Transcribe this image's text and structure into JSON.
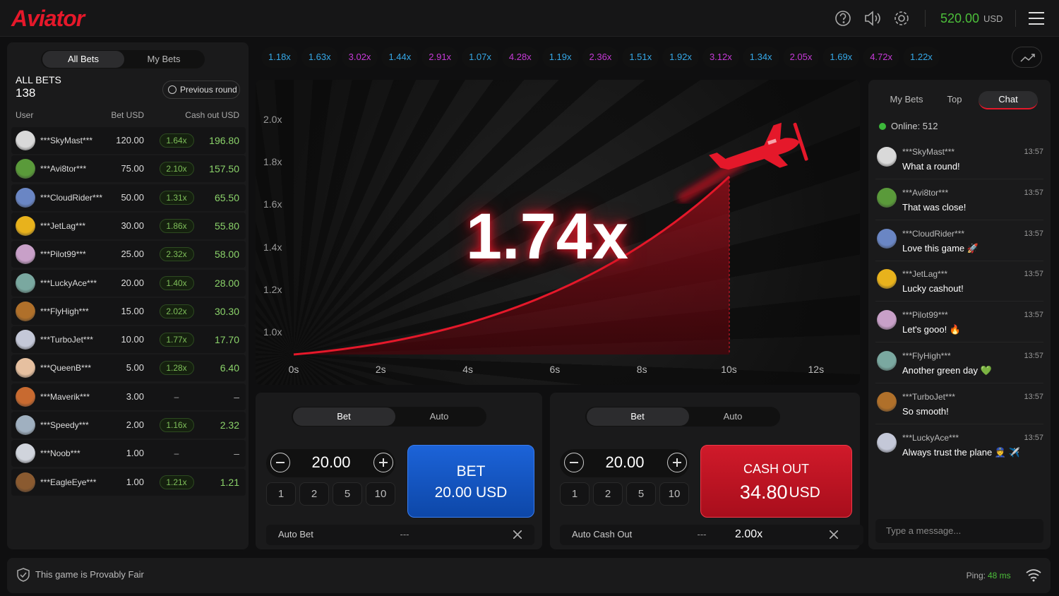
{
  "header": {
    "logo": "Aviator",
    "balance": "520.00",
    "currency": "USD"
  },
  "left_panel": {
    "tabs": [
      "All Bets",
      "My Bets"
    ],
    "title": "ALL BETS",
    "count": "138",
    "previous_round": "Previous round",
    "columns": [
      "User",
      "Bet USD",
      "Cash out USD"
    ],
    "rows": [
      [
        "***SkyMast***",
        "120.00",
        "1.64x",
        "196.80"
      ],
      [
        "***Avi8tor***",
        "75.00",
        "2.10x",
        "157.50"
      ],
      [
        "***CloudRider***",
        "50.00",
        "1.31x",
        "65.50"
      ],
      [
        "***JetLag***",
        "30.00",
        "1.86x",
        "55.80"
      ],
      [
        "***Pilot99***",
        "25.00",
        "2.32x",
        "58.00"
      ],
      [
        "***LuckyAce***",
        "20.00",
        "1.40x",
        "28.00"
      ],
      [
        "***FlyHigh***",
        "15.00",
        "2.02x",
        "30.30"
      ],
      [
        "***TurboJet***",
        "10.00",
        "1.77x",
        "17.70"
      ],
      [
        "***QueenB***",
        "5.00",
        "1.28x",
        "6.40"
      ],
      [
        "***Maverik***",
        "3.00",
        "–",
        "–"
      ],
      [
        "***Speedy***",
        "2.00",
        "1.16x",
        "2.32"
      ],
      [
        "***Noob***",
        "1.00",
        "–",
        "–"
      ],
      [
        "***EagleEye***",
        "1.00",
        "1.21x",
        "1.21"
      ]
    ]
  },
  "history": [
    "1.18x",
    "1.63x",
    "3.02x",
    "1.44x",
    "2.91x",
    "1.07x",
    "4.28x",
    "1.19x",
    "2.36x",
    "1.51x",
    "1.92x",
    "3.12x",
    "1.34x",
    "2.05x",
    "1.69x",
    "4.72x",
    "1.22x"
  ],
  "graph": {
    "multiplier": "1.74x",
    "y_labels": [
      "2.0x",
      "1.8x",
      "1.6x",
      "1.4x",
      "1.2x",
      "1.0x"
    ],
    "x_labels": [
      "0s",
      "2s",
      "4s",
      "6s",
      "8s",
      "10s",
      "12s"
    ]
  },
  "bet_panels": [
    {
      "tabs": [
        "Bet",
        "Auto"
      ],
      "amount": "20.00",
      "quick": [
        "1",
        "2",
        "5",
        "10"
      ],
      "button_title": "BET",
      "button_amount": "20.00 USD",
      "auto_label": "Auto Bet",
      "auto_value": "---"
    },
    {
      "tabs": [
        "Bet",
        "Auto"
      ],
      "amount": "20.00",
      "quick": [
        "1",
        "2",
        "5",
        "10"
      ],
      "button_title": "CASH OUT",
      "button_amount": "34.80",
      "button_currency": "USD",
      "auto_label": "Auto Cash Out",
      "auto_value": "---",
      "auto_multiplier": "2.00x"
    }
  ],
  "chat": {
    "tabs": [
      "My Bets",
      "Top",
      "Chat"
    ],
    "online": "Online: 512",
    "messages": [
      {
        "user": "***SkyMast***",
        "time": "13:57",
        "text": "What a round!"
      },
      {
        "user": "***Avi8tor***",
        "time": "13:57",
        "text": "That was close!"
      },
      {
        "user": "***CloudRider***",
        "time": "13:57",
        "text": "Love this game 🚀"
      },
      {
        "user": "***JetLag***",
        "time": "13:57",
        "text": "Lucky cashout!"
      },
      {
        "user": "***Pilot99***",
        "time": "13:57",
        "text": "Let's gooo! 🔥"
      },
      {
        "user": "***FlyHigh***",
        "time": "13:57",
        "text": "Another green day 💚"
      },
      {
        "user": "***TurboJet***",
        "time": "13:57",
        "text": "So smooth!"
      },
      {
        "user": "***LuckyAce***",
        "time": "13:57",
        "text": "Always trust the plane 👮 ✈️"
      }
    ],
    "placeholder": "Type a message..."
  },
  "footer": {
    "fair": "This game is Provably Fair",
    "ping_label": "Ping:",
    "ping_value": "48 ms"
  }
}
